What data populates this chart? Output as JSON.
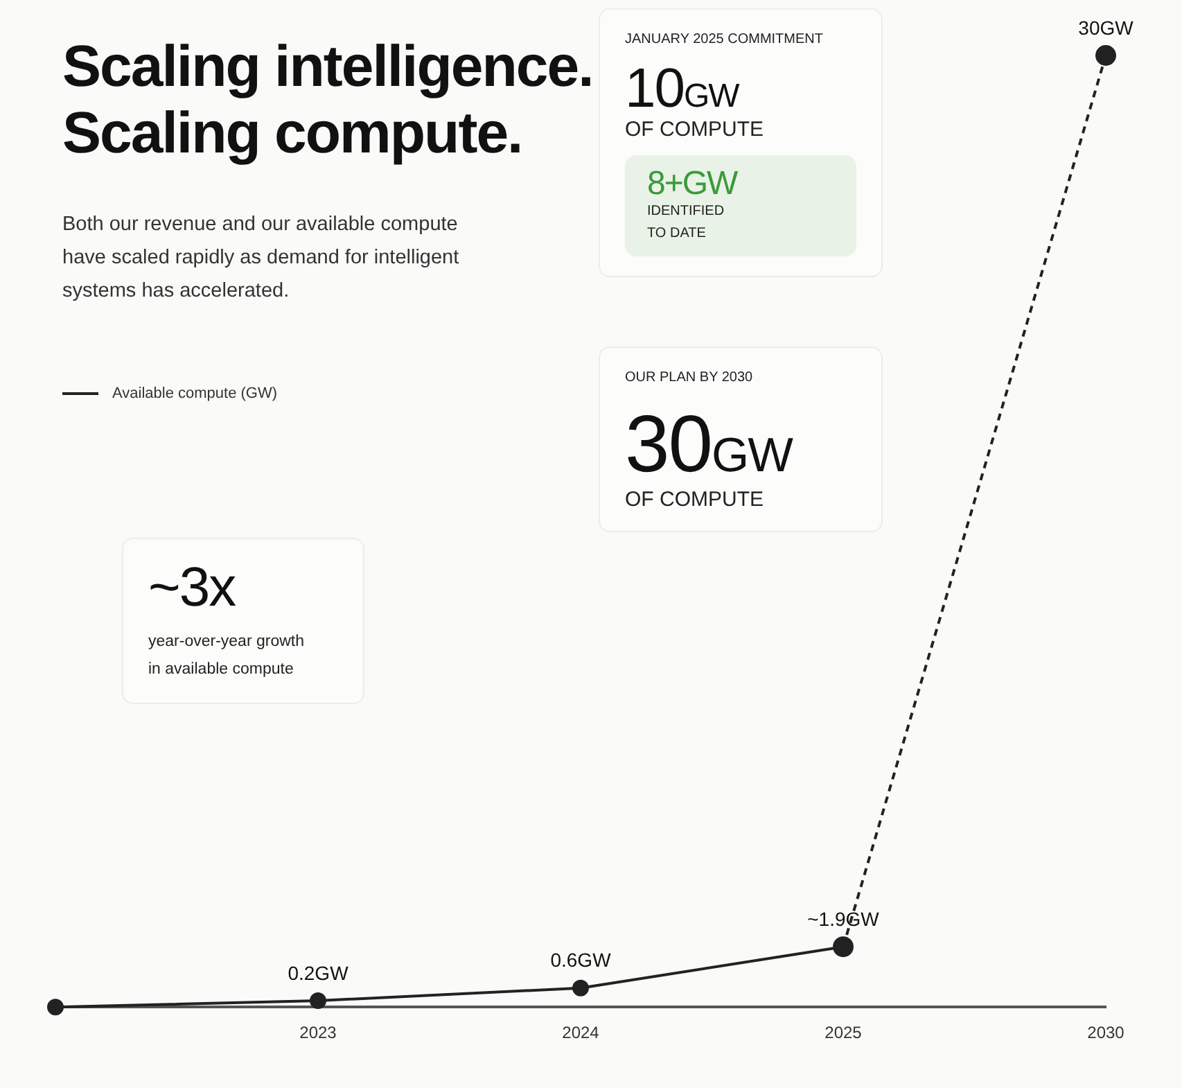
{
  "chart_data": {
    "type": "line",
    "title": "Scaling intelligence.\nScaling compute.",
    "subtitle": "Both our revenue and our available compute have scaled rapidly as demand for intelligent systems has accelerated.",
    "categories": [
      null,
      "2023",
      "2024",
      "2025",
      "2030"
    ],
    "series": [
      {
        "name": "Available compute (GW)",
        "color": "#222222",
        "line_style": "solid",
        "marker": "circle",
        "values": [
          0,
          0.2,
          0.6,
          1.9,
          null
        ],
        "value_labels": [
          null,
          "0.2GW",
          "0.6GW",
          "~1.9GW",
          null
        ]
      },
      {
        "color": "#222222",
        "line_style": "dashed",
        "marker": "circle",
        "values": [
          null,
          null,
          null,
          1.9,
          30
        ],
        "value_labels": [
          null,
          null,
          null,
          null,
          "30GW"
        ]
      }
    ],
    "legend": "top left",
    "grid": false,
    "tick_labels": "x",
    "annotations": [
      "JANUARY 2025 COMMITMENT",
      "10GW",
      "OF COMPUTE",
      "8+GW",
      "IDENTIFIED\nTO DATE",
      "OUR PLAN BY 2030",
      "30GW",
      "OF COMPUTE",
      "~3x",
      "year-over-year growth\nin available compute"
    ]
  }
}
